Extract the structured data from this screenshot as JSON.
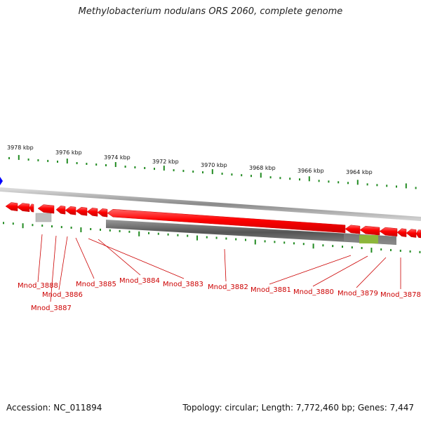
{
  "title": "Methylobacterium nodulans ORS 2060, complete genome",
  "footer": {
    "accession": "Accession: NC_011894",
    "topology": "Topology: circular; Length: 7,772,460 bp; Genes: 7,447"
  },
  "scale_ticks": [
    {
      "label": "3978 kbp"
    },
    {
      "label": "3976 kbp"
    },
    {
      "label": "3974 kbp"
    },
    {
      "label": "3972 kbp"
    },
    {
      "label": "3970 kbp"
    },
    {
      "label": "3968 kbp"
    },
    {
      "label": "3966 kbp"
    },
    {
      "label": "3964 kbp"
    }
  ],
  "genes": [
    {
      "name": "Mnod_3888"
    },
    {
      "name": "Mnod_3886"
    },
    {
      "name": "Mnod_3887"
    },
    {
      "name": "Mnod_3885"
    },
    {
      "name": "Mnod_3884"
    },
    {
      "name": "Mnod_3883"
    },
    {
      "name": "Mnod_3882"
    },
    {
      "name": "Mnod_3881"
    },
    {
      "name": "Mnod_3880"
    },
    {
      "name": "Mnod_3879"
    },
    {
      "name": "Mnod_3878"
    }
  ],
  "colors": {
    "gene": "#ff0000",
    "label": "#cc0000",
    "tick": "#228b22",
    "backbone": "#9a9a9a",
    "feature_bar": "#666666",
    "highlight": "#8fbf2f",
    "marker": "#0000ff"
  }
}
